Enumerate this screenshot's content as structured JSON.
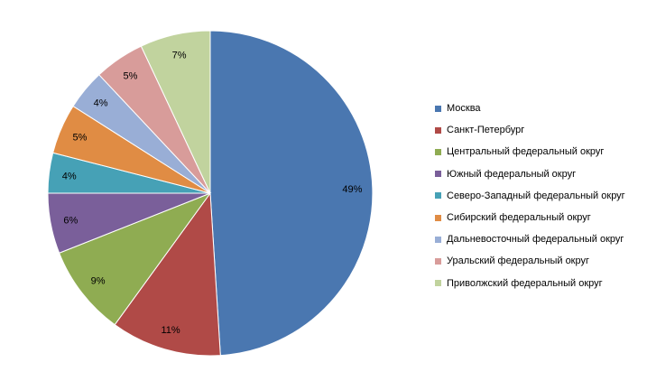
{
  "chart_data": {
    "type": "pie",
    "title": "",
    "start_angle_deg": 0,
    "direction": "clockwise",
    "legend_position": "right",
    "slices": [
      {
        "label": "Москва",
        "value": 49,
        "display": "49%",
        "color": "#4a77b0"
      },
      {
        "label": "Санкт-Петербург",
        "value": 11,
        "display": "11%",
        "color": "#b04a47"
      },
      {
        "label": "Центральный федеральный округ",
        "value": 9,
        "display": "9%",
        "color": "#8fac52"
      },
      {
        "label": "Южный федеральный округ",
        "value": 6,
        "display": "6%",
        "color": "#7a5f9a"
      },
      {
        "label": "Северо-Западный федеральный округ",
        "value": 4,
        "display": "4%",
        "color": "#46a1b6"
      },
      {
        "label": "Сибирский федеральный округ",
        "value": 5,
        "display": "5%",
        "color": "#e08c44"
      },
      {
        "label": "Дальневосточный федеральный округ",
        "value": 4,
        "display": "4%",
        "color": "#99aed6"
      },
      {
        "label": "Уральский федеральный округ",
        "value": 5,
        "display": "5%",
        "color": "#d89c9a"
      },
      {
        "label": "Приволжский федеральный округ",
        "value": 7,
        "display": "7%",
        "color": "#c1d39e"
      }
    ]
  }
}
